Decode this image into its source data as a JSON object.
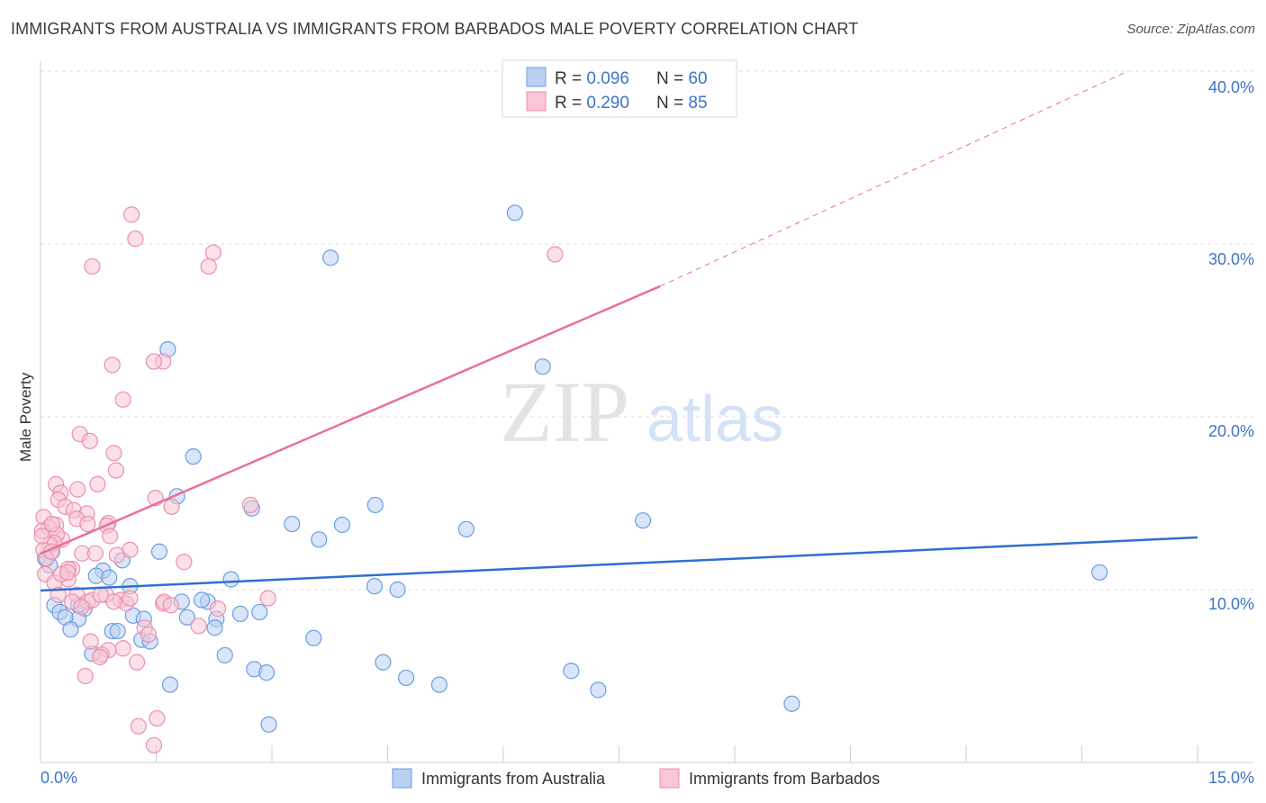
{
  "header": {
    "title": "IMMIGRANTS FROM AUSTRALIA VS IMMIGRANTS FROM BARBADOS MALE POVERTY CORRELATION CHART",
    "source": "Source: ZipAtlas.com"
  },
  "watermark": {
    "zip": "ZIP",
    "atlas": "atlas"
  },
  "chart_data": {
    "type": "scatter",
    "title": "IMMIGRANTS FROM AUSTRALIA VS IMMIGRANTS FROM BARBADOS MALE POVERTY CORRELATION CHART",
    "xlabel": "",
    "ylabel": "Male Poverty",
    "xlim": [
      0,
      15
    ],
    "ylim": [
      0,
      40
    ],
    "x_tick_labels": [
      "0.0%",
      "15.0%"
    ],
    "y_ticks": [
      10,
      20,
      30,
      40
    ],
    "y_tick_labels": [
      "10.0%",
      "20.0%",
      "30.0%",
      "40.0%"
    ],
    "grid": true,
    "legend_placement": "top-center",
    "stats": [
      {
        "r_label": "R = ",
        "r": "0.096",
        "n_label": "N = ",
        "n": "60"
      },
      {
        "r_label": "R = ",
        "r": "0.290",
        "n_label": "N = ",
        "n": "85"
      }
    ],
    "series": [
      {
        "name": "Immigrants from Australia",
        "color": "#6a9ee0",
        "fill": "#b9d0f3",
        "trend": {
          "x0": 0,
          "y0": 9.95,
          "x1": 15,
          "y1": 13.02,
          "color": "#2f6fd1"
        },
        "points": [
          [
            6.15,
            31.8
          ],
          [
            3.76,
            29.2
          ],
          [
            1.65,
            23.9
          ],
          [
            6.51,
            22.9
          ],
          [
            1.98,
            17.7
          ],
          [
            1.77,
            15.4
          ],
          [
            2.74,
            14.7
          ],
          [
            4.34,
            14.9
          ],
          [
            3.26,
            13.8
          ],
          [
            3.91,
            13.75
          ],
          [
            5.52,
            13.5
          ],
          [
            7.81,
            14.0
          ],
          [
            3.61,
            12.9
          ],
          [
            1.54,
            12.2
          ],
          [
            1.06,
            11.7
          ],
          [
            0.12,
            11.4
          ],
          [
            0.81,
            11.1
          ],
          [
            0.72,
            10.8
          ],
          [
            0.89,
            10.7
          ],
          [
            2.47,
            10.6
          ],
          [
            1.16,
            10.2
          ],
          [
            4.33,
            10.2
          ],
          [
            4.63,
            10.0
          ],
          [
            13.73,
            11.0
          ],
          [
            0.18,
            9.1
          ],
          [
            0.25,
            8.7
          ],
          [
            0.57,
            8.9
          ],
          [
            0.49,
            8.3
          ],
          [
            0.32,
            8.4
          ],
          [
            0.39,
            7.7
          ],
          [
            0.93,
            7.6
          ],
          [
            1.0,
            7.6
          ],
          [
            1.2,
            8.5
          ],
          [
            1.34,
            8.3
          ],
          [
            1.83,
            9.3
          ],
          [
            1.9,
            8.4
          ],
          [
            2.17,
            9.3
          ],
          [
            2.09,
            9.4
          ],
          [
            2.28,
            8.3
          ],
          [
            2.26,
            7.8
          ],
          [
            2.59,
            8.6
          ],
          [
            2.84,
            8.7
          ],
          [
            1.31,
            7.1
          ],
          [
            1.42,
            7.0
          ],
          [
            3.54,
            7.2
          ],
          [
            0.67,
            6.3
          ],
          [
            2.39,
            6.2
          ],
          [
            2.77,
            5.4
          ],
          [
            2.93,
            5.2
          ],
          [
            4.44,
            5.8
          ],
          [
            4.74,
            4.9
          ],
          [
            5.17,
            4.5
          ],
          [
            6.88,
            5.3
          ],
          [
            7.23,
            4.2
          ],
          [
            9.74,
            3.4
          ],
          [
            1.68,
            4.5
          ],
          [
            2.96,
            2.2
          ],
          [
            0.15,
            12.2
          ],
          [
            0.06,
            11.8
          ],
          [
            0.49,
            9.1
          ]
        ]
      },
      {
        "name": "Immigrants from Barbados",
        "color": "#ec8fae",
        "fill": "#f8c6d6",
        "trend": {
          "x0": 0,
          "y0": 12.08,
          "x1": 8.03,
          "y1": 27.55,
          "dash_to_x": 14.1,
          "dash_to_y": 40,
          "color": "#e8709a"
        },
        "points": [
          [
            1.18,
            31.7
          ],
          [
            1.23,
            30.3
          ],
          [
            2.24,
            29.5
          ],
          [
            6.67,
            29.4
          ],
          [
            0.67,
            28.7
          ],
          [
            2.18,
            28.7
          ],
          [
            0.93,
            23.0
          ],
          [
            1.59,
            23.2
          ],
          [
            1.47,
            23.2
          ],
          [
            1.07,
            21.0
          ],
          [
            0.51,
            19.0
          ],
          [
            0.64,
            18.6
          ],
          [
            0.95,
            17.9
          ],
          [
            0.98,
            16.9
          ],
          [
            0.2,
            16.1
          ],
          [
            0.74,
            16.1
          ],
          [
            0.48,
            15.8
          ],
          [
            0.26,
            15.6
          ],
          [
            0.23,
            15.2
          ],
          [
            1.49,
            15.3
          ],
          [
            1.7,
            14.8
          ],
          [
            2.72,
            14.9
          ],
          [
            0.04,
            14.2
          ],
          [
            0.32,
            14.8
          ],
          [
            0.43,
            14.6
          ],
          [
            0.6,
            14.4
          ],
          [
            0.47,
            14.1
          ],
          [
            0.61,
            13.8
          ],
          [
            0.2,
            13.75
          ],
          [
            0.88,
            13.85
          ],
          [
            0.86,
            13.7
          ],
          [
            0.11,
            13.6
          ],
          [
            0.02,
            13.4
          ],
          [
            0.9,
            13.1
          ],
          [
            0.28,
            12.9
          ],
          [
            0.21,
            13.2
          ],
          [
            0.18,
            12.7
          ],
          [
            0.12,
            12.6
          ],
          [
            1.16,
            12.3
          ],
          [
            0.54,
            12.1
          ],
          [
            0.71,
            12.1
          ],
          [
            0.99,
            12.0
          ],
          [
            1.86,
            11.6
          ],
          [
            0.41,
            11.2
          ],
          [
            0.36,
            11.2
          ],
          [
            0.06,
            10.9
          ],
          [
            0.18,
            10.4
          ],
          [
            0.36,
            10.6
          ],
          [
            0.47,
            9.7
          ],
          [
            0.23,
            9.7
          ],
          [
            0.41,
            9.3
          ],
          [
            0.61,
            9.3
          ],
          [
            0.67,
            9.4
          ],
          [
            0.85,
            9.7
          ],
          [
            1.04,
            9.4
          ],
          [
            1.11,
            9.2
          ],
          [
            1.59,
            9.2
          ],
          [
            1.6,
            9.3
          ],
          [
            2.95,
            9.5
          ],
          [
            2.3,
            8.9
          ],
          [
            1.35,
            7.8
          ],
          [
            1.4,
            7.4
          ],
          [
            0.65,
            7.0
          ],
          [
            0.88,
            6.5
          ],
          [
            0.79,
            6.25
          ],
          [
            0.77,
            6.1
          ],
          [
            1.07,
            6.6
          ],
          [
            1.25,
            5.8
          ],
          [
            0.58,
            5.0
          ],
          [
            1.27,
            2.1
          ],
          [
            1.51,
            2.55
          ],
          [
            1.47,
            1.0
          ],
          [
            0.04,
            12.3
          ],
          [
            0.08,
            11.8
          ],
          [
            0.14,
            12.2
          ],
          [
            0.15,
            13.8
          ],
          [
            0.02,
            13.1
          ],
          [
            0.27,
            10.9
          ],
          [
            0.35,
            11.0
          ],
          [
            0.53,
            9.0
          ],
          [
            0.78,
            9.7
          ],
          [
            0.95,
            9.3
          ],
          [
            1.16,
            9.5
          ],
          [
            1.69,
            9.1
          ],
          [
            2.05,
            7.9
          ]
        ]
      }
    ]
  }
}
